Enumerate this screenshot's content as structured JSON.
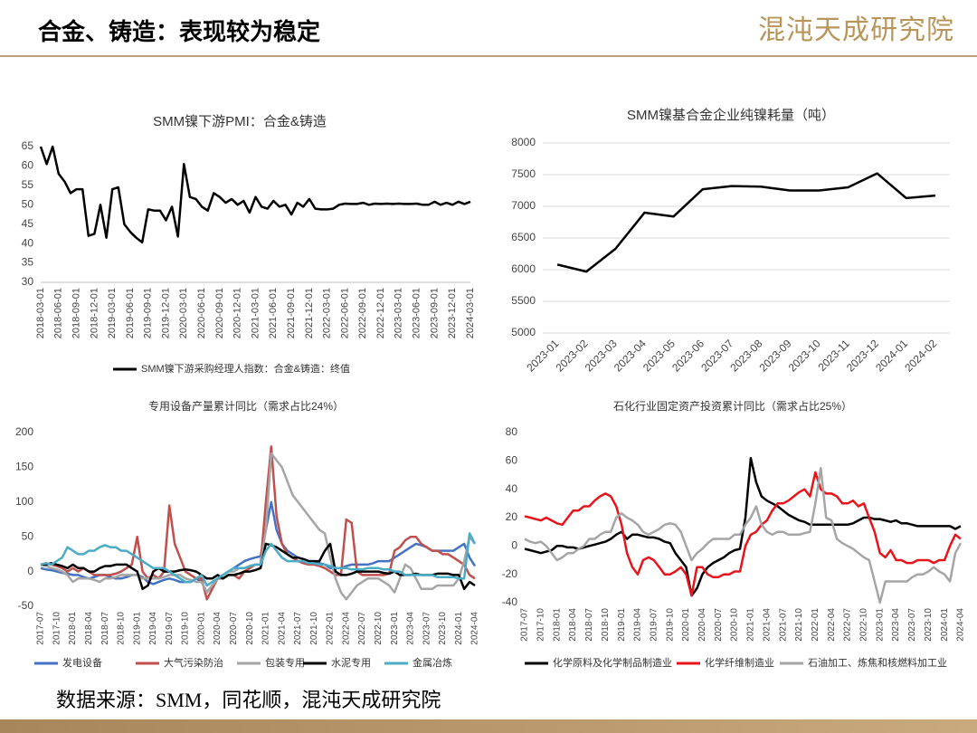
{
  "header": {
    "title": "合金、铸造：表现较为稳定",
    "logo": "混沌天成研究院"
  },
  "footer": {
    "source": "数据来源：SMM，同花顺，混沌天成研究院"
  },
  "chart_data": [
    {
      "type": "line",
      "title": "SMM镍下游PMI：合金&铸造",
      "legend": "bottom",
      "categories": [
        "2018-03-01",
        null,
        null,
        "2018-06-01",
        null,
        null,
        "2018-09-01",
        null,
        null,
        "2018-12-01",
        null,
        null,
        "2019-03-01",
        null,
        null,
        "2019-06-01",
        null,
        null,
        "2019-09-01",
        null,
        null,
        "2019-12-01",
        null,
        null,
        "2020-03-01",
        null,
        null,
        "2020-06-01",
        null,
        null,
        "2020-09-01",
        null,
        null,
        "2020-12-01",
        null,
        null,
        "2021-03-01",
        null,
        null,
        "2021-06-01",
        null,
        null,
        "2021-09-01",
        null,
        null,
        "2021-12-01",
        null,
        null,
        "2022-03-01",
        null,
        null,
        "2022-06-01",
        null,
        null,
        "2022-09-01",
        null,
        null,
        "2022-12-01",
        null,
        null,
        "2023-03-01",
        null,
        null,
        "2023-06-01",
        null,
        null,
        "2023-09-01",
        null,
        null,
        "2023-12-01",
        null,
        null,
        "2024-03-01"
      ],
      "series": [
        {
          "name": "SMM镍下游采购经理人指数：合金&铸造：终值",
          "color": "#000000",
          "values": [
            65,
            60.5,
            65,
            58,
            56,
            53,
            54,
            54,
            42,
            42.5,
            50,
            41.5,
            54,
            54.5,
            45,
            43,
            41.5,
            40.3,
            48.8,
            48.5,
            48.5,
            46,
            49.5,
            41.8,
            60.5,
            52,
            51.5,
            49.5,
            48.5,
            53,
            52,
            50.5,
            51.5,
            50,
            51,
            48,
            52,
            49.5,
            49,
            51,
            49.5,
            50,
            47.5,
            50.5,
            49.5,
            51.5,
            49,
            48.8,
            48.8,
            49,
            50,
            50.3,
            50.2,
            50.2,
            50.5,
            50,
            50.3,
            50.2,
            50.3,
            50.2,
            50.3,
            50.2,
            50.2,
            50.3,
            50,
            50,
            50.8,
            50,
            50.5,
            50,
            50.8,
            50.2,
            50.8
          ]
        }
      ],
      "ylim": [
        30,
        65
      ],
      "yticks": [
        30,
        35,
        40,
        45,
        50,
        55,
        60,
        65
      ]
    },
    {
      "type": "line",
      "title": "SMM镍基合金企业纯镍耗量（吨）",
      "grid": true,
      "color": "#000000",
      "categories": [
        "2023-01",
        "2023-02",
        "2023-03",
        "2023-04",
        "2023-05",
        "2023-06",
        "2023-07",
        "2023-08",
        "2023-09",
        "2023-10",
        "2023-11",
        "2023-12",
        "2024-01",
        "2024-02"
      ],
      "values": [
        6080,
        5970,
        6330,
        6900,
        6840,
        7270,
        7320,
        7310,
        7250,
        7250,
        7300,
        7520,
        7130,
        7170
      ],
      "ylim": [
        5000,
        8000
      ],
      "yticks": [
        5000,
        5500,
        6000,
        6500,
        7000,
        7500,
        8000
      ]
    },
    {
      "type": "line",
      "title": "专用设备产量累计同比（需求占比24%）",
      "legend": "bottom",
      "categories": [
        "2017-07",
        null,
        null,
        "2017-10",
        null,
        null,
        "2018-01",
        null,
        null,
        "2018-04",
        null,
        null,
        "2018-07",
        null,
        null,
        "2018-10",
        null,
        null,
        "2019-01",
        null,
        null,
        "2019-04",
        null,
        null,
        "2019-07",
        null,
        null,
        "2019-10",
        null,
        null,
        "2020-01",
        null,
        null,
        "2020-04",
        null,
        null,
        "2020-07",
        null,
        null,
        "2020-10",
        null,
        null,
        "2021-01",
        null,
        null,
        "2021-04",
        null,
        null,
        "2021-07",
        null,
        null,
        "2021-10",
        null,
        null,
        "2022-01",
        null,
        null,
        "2022-04",
        null,
        null,
        "2022-07",
        null,
        null,
        "2022-10",
        null,
        null,
        "2023-01",
        null,
        null,
        "2023-04",
        null,
        null,
        "2023-07",
        null,
        null,
        "2023-10",
        null,
        null,
        "2024-01",
        null,
        null,
        "2024-04"
      ],
      "series": [
        {
          "name": "发电设备",
          "color": "#4472c4",
          "values": [
            5,
            3,
            2,
            0,
            -2,
            -3,
            -5,
            -5,
            -8,
            -10,
            -8,
            -5,
            -5,
            -8,
            -10,
            -10,
            -8,
            -5,
            -5,
            -8,
            -15,
            -18,
            -15,
            -12,
            -10,
            -12,
            -15,
            -15,
            -15,
            -10,
            -15,
            -30,
            -20,
            -10,
            -5,
            0,
            5,
            10,
            15,
            18,
            20,
            22,
            60,
            100,
            60,
            40,
            30,
            25,
            20,
            18,
            15,
            15,
            12,
            10,
            5,
            5,
            5,
            8,
            10,
            10,
            10,
            10,
            12,
            15,
            15,
            15,
            20,
            25,
            30,
            35,
            40,
            38,
            35,
            30,
            30,
            30,
            30,
            30,
            35,
            40,
            20,
            8
          ]
        },
        {
          "name": "大气污染防治",
          "color": "#c0504d",
          "values": [
            10,
            12,
            10,
            8,
            5,
            0,
            5,
            0,
            5,
            0,
            -5,
            -5,
            -5,
            -5,
            -3,
            0,
            5,
            10,
            50,
            0,
            -10,
            -5,
            -10,
            0,
            95,
            40,
            20,
            0,
            -5,
            -10,
            -10,
            -40,
            -25,
            -10,
            -10,
            -5,
            -5,
            -10,
            0,
            5,
            10,
            10,
            100,
            180,
            80,
            40,
            25,
            20,
            15,
            12,
            10,
            10,
            8,
            5,
            0,
            -5,
            -5,
            75,
            70,
            0,
            -5,
            -5,
            -5,
            -5,
            -5,
            -3,
            30,
            35,
            45,
            50,
            50,
            40,
            35,
            30,
            30,
            25,
            25,
            20,
            15,
            10,
            -5,
            -10
          ]
        },
        {
          "name": "包装专用",
          "color": "#a5a5a5",
          "values": [
            10,
            8,
            5,
            3,
            0,
            -5,
            -15,
            -10,
            -10,
            -10,
            -12,
            -15,
            -10,
            -10,
            -8,
            -5,
            -5,
            -5,
            -5,
            -10,
            -10,
            -10,
            -10,
            -8,
            -5,
            -5,
            -5,
            -10,
            -12,
            -15,
            -15,
            -30,
            -20,
            -10,
            -5,
            0,
            0,
            5,
            5,
            8,
            10,
            10,
            60,
            170,
            160,
            150,
            130,
            110,
            100,
            90,
            80,
            70,
            60,
            55,
            20,
            -10,
            -30,
            -40,
            -30,
            -20,
            -15,
            -10,
            -10,
            -10,
            -15,
            -20,
            -30,
            -10,
            10,
            5,
            -10,
            -25,
            -25,
            -25,
            -20,
            -20,
            -20,
            -20,
            -10,
            15,
            50,
            40
          ]
        },
        {
          "name": "水泥专用",
          "color": "#000000",
          "values": [
            10,
            10,
            12,
            10,
            8,
            5,
            10,
            5,
            5,
            0,
            0,
            5,
            8,
            8,
            10,
            10,
            10,
            5,
            0,
            -25,
            -20,
            0,
            5,
            0,
            0,
            0,
            2,
            3,
            2,
            0,
            -5,
            -10,
            -10,
            -5,
            -10,
            -5,
            -5,
            -3,
            0,
            0,
            2,
            5,
            40,
            38,
            35,
            30,
            25,
            20,
            20,
            18,
            15,
            15,
            15,
            30,
            40,
            0,
            -5,
            -5,
            -3,
            0,
            0,
            0,
            0,
            0,
            -2,
            -3,
            0,
            -5,
            -5,
            -5,
            -3,
            -5,
            -5,
            -5,
            -3,
            -3,
            -3,
            -5,
            -5,
            -25,
            -15,
            -20
          ]
        },
        {
          "name": "金属冶炼",
          "color": "#4bacc6",
          "values": [
            10,
            12,
            10,
            15,
            20,
            35,
            30,
            25,
            25,
            30,
            30,
            35,
            38,
            35,
            35,
            30,
            30,
            25,
            20,
            15,
            10,
            5,
            5,
            5,
            0,
            -5,
            -10,
            -15,
            -15,
            -10,
            -5,
            -20,
            -15,
            -10,
            -5,
            0,
            5,
            5,
            5,
            8,
            10,
            10,
            30,
            40,
            30,
            20,
            15,
            15,
            15,
            15,
            12,
            12,
            10,
            10,
            8,
            5,
            5,
            5,
            3,
            3,
            3,
            5,
            5,
            5,
            3,
            3,
            0,
            0,
            -5,
            -5,
            -5,
            -5,
            -5,
            -5,
            -8,
            -8,
            -8,
            -8,
            -10,
            -10,
            55,
            40
          ]
        }
      ],
      "ylim": [
        -50,
        200
      ],
      "yticks": [
        -50,
        0,
        50,
        100,
        150,
        200
      ]
    },
    {
      "type": "line",
      "title": "石化行业固定资产投资累计同比（需求占比25%）",
      "legend": "bottom",
      "categories": [
        "2017-07",
        null,
        null,
        "2017-10",
        null,
        null,
        "2018-01",
        null,
        null,
        "2018-04",
        null,
        null,
        "2018-07",
        null,
        null,
        "2018-10",
        null,
        null,
        "2019-01",
        null,
        null,
        "2019-04",
        null,
        null,
        "2019-07",
        null,
        null,
        "2019-10",
        null,
        null,
        "2020-01",
        null,
        null,
        "2020-04",
        null,
        null,
        "2020-07",
        null,
        null,
        "2020-10",
        null,
        null,
        "2021-01",
        null,
        null,
        "2021-04",
        null,
        null,
        "2021-07",
        null,
        null,
        "2021-10",
        null,
        null,
        "2022-01",
        null,
        null,
        "2022-04",
        null,
        null,
        "2022-07",
        null,
        null,
        "2022-10",
        null,
        null,
        "2023-01",
        null,
        null,
        "2023-04",
        null,
        null,
        "2023-07",
        null,
        null,
        "2023-10",
        null,
        null,
        "2024-01",
        null,
        null,
        "2024-04"
      ],
      "series": [
        {
          "name": "化学原料及化学制品制造业",
          "color": "#000000",
          "values": [
            -2,
            -3,
            -4,
            -5,
            -4,
            -3,
            0,
            0,
            -1,
            -1,
            -2,
            -1,
            0,
            1,
            2,
            3,
            5,
            8,
            10,
            5,
            8,
            8,
            7,
            6,
            6,
            5,
            3,
            2,
            -5,
            -10,
            -15,
            -35,
            -30,
            -20,
            -15,
            -12,
            -10,
            -8,
            -5,
            -3,
            -2,
            20,
            62,
            45,
            35,
            32,
            30,
            28,
            25,
            22,
            20,
            18,
            17,
            15,
            15,
            15,
            15,
            15,
            15,
            15,
            15,
            16,
            18,
            20,
            20,
            19,
            19,
            18,
            17,
            18,
            16,
            16,
            15,
            14,
            14,
            14,
            14,
            14,
            14,
            14,
            12,
            14
          ]
        },
        {
          "name": "化学纤维制造业",
          "color": "#e8141c",
          "values": [
            21,
            20,
            19,
            18,
            20,
            18,
            16,
            15,
            20,
            25,
            25,
            28,
            28,
            32,
            35,
            37,
            35,
            28,
            15,
            -5,
            -15,
            -20,
            -10,
            -8,
            -10,
            -15,
            -20,
            -20,
            -18,
            -15,
            -20,
            -35,
            -15,
            -15,
            -20,
            -22,
            -22,
            -20,
            -20,
            -18,
            -18,
            0,
            8,
            10,
            15,
            18,
            25,
            30,
            30,
            32,
            35,
            38,
            40,
            35,
            52,
            40,
            37,
            37,
            35,
            30,
            30,
            32,
            28,
            30,
            20,
            10,
            -5,
            -8,
            -3,
            -10,
            -10,
            -12,
            -12,
            -10,
            -10,
            -10,
            -12,
            -10,
            -10,
            0,
            8,
            5
          ]
        },
        {
          "name": "石油加工、炼焦和核燃料加工业",
          "color": "#a5a5a5",
          "values": [
            5,
            3,
            2,
            3,
            0,
            -5,
            -10,
            -8,
            -5,
            -5,
            -2,
            0,
            5,
            5,
            8,
            10,
            10,
            20,
            23,
            20,
            18,
            15,
            10,
            8,
            10,
            12,
            15,
            16,
            15,
            10,
            0,
            -10,
            -5,
            -2,
            2,
            5,
            5,
            5,
            5,
            8,
            8,
            15,
            20,
            28,
            15,
            10,
            8,
            10,
            10,
            8,
            8,
            8,
            9,
            10,
            30,
            55,
            20,
            18,
            5,
            2,
            0,
            -2,
            -5,
            -8,
            -10,
            -25,
            -40,
            -25,
            -25,
            -25,
            -25,
            -25,
            -22,
            -20,
            -20,
            -18,
            -15,
            -18,
            -20,
            -25,
            -5,
            2
          ]
        }
      ],
      "ylim": [
        -40,
        80
      ],
      "yticks": [
        -40,
        -20,
        0,
        20,
        40,
        60,
        80
      ]
    }
  ]
}
